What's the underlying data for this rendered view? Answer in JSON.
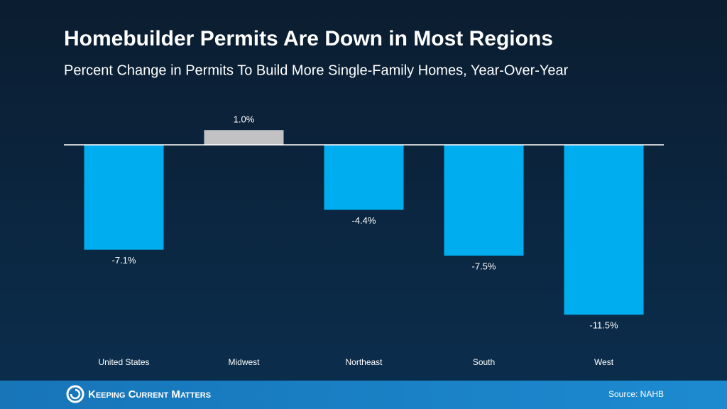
{
  "chart_data": {
    "type": "bar",
    "title": "Homebuilder Permits Are Down in Most Regions",
    "subtitle": "Percent Change in Permits To Build More Single-Family Homes, Year-Over-Year",
    "categories": [
      "United States",
      "Midwest",
      "Northeast",
      "South",
      "West"
    ],
    "values": [
      -7.1,
      1.0,
      -4.4,
      -7.5,
      -11.5
    ],
    "value_labels": [
      "-7.1%",
      "1.0%",
      "-4.4%",
      "-7.5%",
      "-11.5%"
    ],
    "colors": [
      "#00aeef",
      "#c2c2c4",
      "#00aeef",
      "#00aeef",
      "#00aeef"
    ]
  },
  "footer": {
    "brand": "Keeping Current Matters",
    "source": "Source: NAHB"
  }
}
